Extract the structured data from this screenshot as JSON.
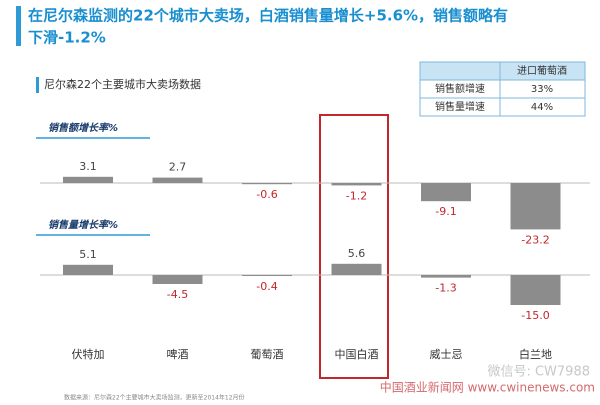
{
  "header": {
    "title": "在尼尔森监测的22个城市大卖场，白酒销售量增长+5.6%，销售额略有下滑-1.2%",
    "subtitle": "尼尔森22个主要城市大卖场数据"
  },
  "table": {
    "header": "进口葡萄酒",
    "rows": [
      [
        "销售额增速",
        "33%"
      ],
      [
        "销售量增速",
        "44%"
      ]
    ]
  },
  "chart_data": [
    {
      "type": "bar",
      "title": "销售额增长率%",
      "values": [
        3.1,
        2.7,
        -0.6,
        -1.2,
        -9.1,
        -23.2
      ],
      "color": "#8c8c8c",
      "label_color": "#444444",
      "negative_label_color": "#c0282d"
    },
    {
      "type": "bar",
      "title": "销售量增长率%",
      "categories": [
        "伏特加",
        "啤酒",
        "葡萄酒",
        "中国白酒",
        "威士忌",
        "白兰地"
      ],
      "values": [
        5.1,
        -4.5,
        -0.4,
        5.6,
        -1.3,
        -15
      ],
      "value_labels": [
        "5.1",
        "-4.5",
        "-0.4",
        "5.6",
        "-1.3",
        "-15.0"
      ],
      "color": "#8c8c8c",
      "label_color": "#444444",
      "negative_label_color": "#c0282d"
    }
  ],
  "footer": {
    "source": "数据来源：尼尔森22个主要城市大卖场监测，更新至2014年12月份",
    "watermark_wechat": "微信号: CW7988",
    "watermark_site": "中国酒业新闻网 www.cwinenews.com"
  }
}
